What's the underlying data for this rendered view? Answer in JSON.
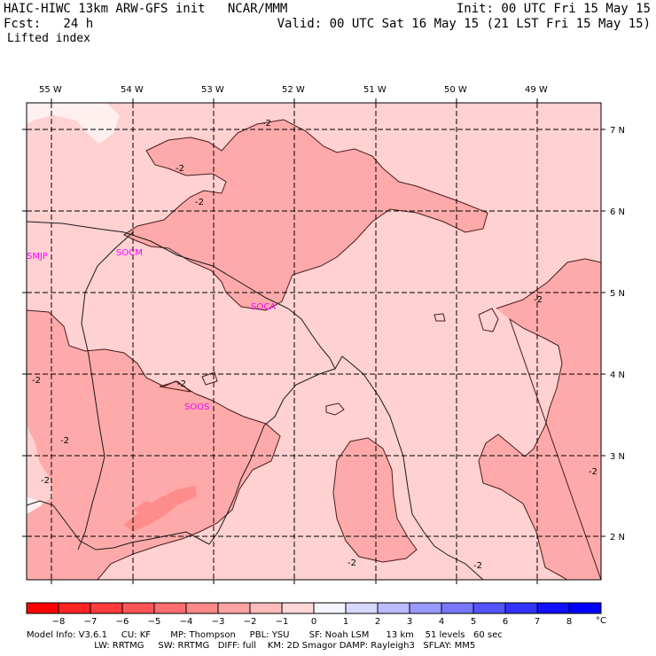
{
  "header": {
    "model_line": "HAIC-HIWC 13km ARW-GFS init   NCAR/MMM",
    "init": "Init: 00 UTC Fri 15 May 15",
    "fcst_line": "Fcst:   24 h",
    "valid": "Valid: 00 UTC Sat 16 May 15 (21 LST Fri 15 May 15)",
    "field": "Lifted index"
  },
  "map": {
    "lon_labels": [
      "55 W",
      "54 W",
      "53 W",
      "52 W",
      "51 W",
      "50 W",
      "49 W"
    ],
    "lat_labels": [
      "7 N",
      "6 N",
      "5 N",
      "4 N",
      "3 N",
      "2 N"
    ],
    "stations": [
      "SMJP",
      "SOCM",
      "SOCA",
      "SOOS"
    ],
    "contour_label": "-2",
    "colors": {
      "lvl_m1": "#ffd1d1",
      "lvl_m2": "#ffaaaa",
      "lvl_m3": "#ff8c8c",
      "lvl_0": "#fff0f0",
      "station": "#ff00ff"
    }
  },
  "colorbar": {
    "ticks": [
      "−8",
      "−7",
      "−6",
      "−5",
      "−4",
      "−3",
      "−2",
      "−1",
      "0",
      "1",
      "2",
      "3",
      "4",
      "5",
      "6",
      "7",
      "8"
    ],
    "unit": "°C",
    "colors": [
      "#ff0000",
      "#ff2222",
      "#ff3a3a",
      "#ff5555",
      "#ff6e6e",
      "#ff8888",
      "#ffa2a2",
      "#ffbbbb",
      "#ffd8d8",
      "#f4f4ff",
      "#d8d8ff",
      "#bbbbff",
      "#9999ff",
      "#7777ff",
      "#5555ff",
      "#3333ff",
      "#1111ff",
      "#0000ff"
    ]
  },
  "footer": {
    "line1": "Model Info: V3.6.1     CU: KF       MP: Thompson     PBL: YSU       SF: Noah LSM      13 km    51 levels   60 sec",
    "line2": "                        LW: RRTMG     SW: RRTMG   DIFF: full    KM: 2D Smagor DAMP: Rayleigh3   SFLAY: MM5"
  }
}
